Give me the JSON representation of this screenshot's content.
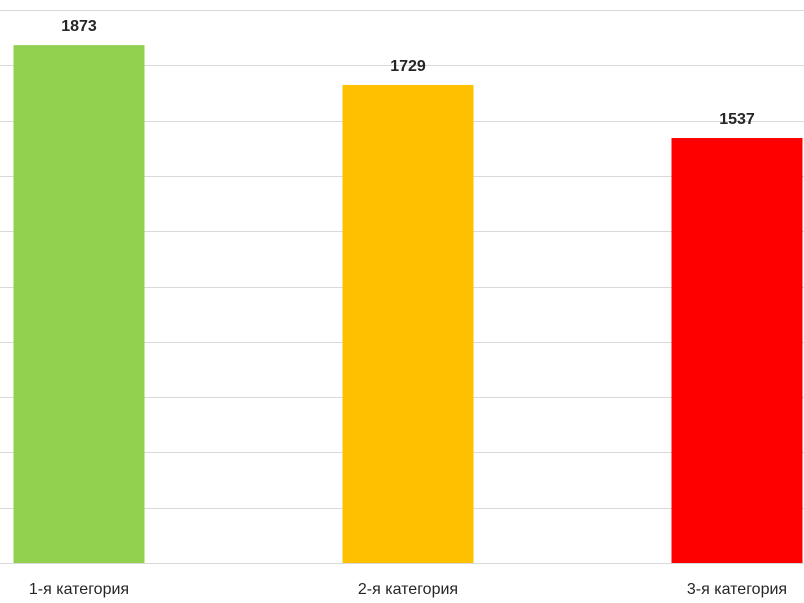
{
  "chart_data": {
    "type": "bar",
    "categories": [
      "1-я категория",
      "2-я категория",
      "3-я категория"
    ],
    "values": [
      1873,
      1729,
      1537
    ],
    "colors": [
      "#92d050",
      "#ffc000",
      "#ff0000"
    ],
    "ylim": [
      0,
      2000
    ],
    "grid": true,
    "gridline_step": 200,
    "legend": "none"
  }
}
